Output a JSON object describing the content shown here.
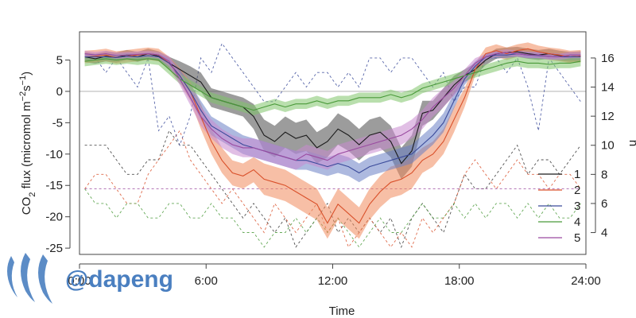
{
  "chart_data": {
    "type": "line",
    "title": "",
    "xlabel": "Time",
    "ylabel": "CO2 flux (micromol m-2 s-1)",
    "y2label": "n",
    "xlim": [
      0,
      24
    ],
    "ylim": [
      -26,
      9.5
    ],
    "y2lim": [
      2.5,
      17.8
    ],
    "x_ticks": [
      0,
      6,
      12,
      18,
      24
    ],
    "x_tick_labels": [
      "0:00",
      "6:00",
      "12:00",
      "18:00",
      "24:00"
    ],
    "y_ticks": [
      -25,
      -20,
      -15,
      -10,
      -5,
      0,
      5
    ],
    "y_tick_labels": [
      "-25",
      "-20",
      "-15",
      "-10",
      "-5",
      "0",
      "5"
    ],
    "y2_ticks": [
      4,
      6,
      8,
      10,
      12,
      14,
      16
    ],
    "y2_tick_labels": [
      "4",
      "6",
      "8",
      "10",
      "12",
      "14",
      "16"
    ],
    "reference_line_y": 0,
    "legend_position": "bottom-right",
    "grid": false,
    "x": [
      0.25,
      0.75,
      1.25,
      1.75,
      2.25,
      2.75,
      3.25,
      3.75,
      4.25,
      4.75,
      5.25,
      5.75,
      6.25,
      6.75,
      7.25,
      7.75,
      8.25,
      8.75,
      9.25,
      9.75,
      10.25,
      10.75,
      11.25,
      11.75,
      12.25,
      12.75,
      13.25,
      13.75,
      14.25,
      14.75,
      15.25,
      15.75,
      16.25,
      16.75,
      17.25,
      17.75,
      18.25,
      18.75,
      19.25,
      19.75,
      20.25,
      20.75,
      21.25,
      21.75,
      22.25,
      22.75,
      23.25,
      23.75
    ],
    "series": [
      {
        "name": "1",
        "color": "#1a1a1a",
        "band_color": "#4a4a4a",
        "mean": [
          5.5,
          5.2,
          5.6,
          5.4,
          5.8,
          5.5,
          6.0,
          5.6,
          4.5,
          3.5,
          2.5,
          1.5,
          -1.0,
          -1.5,
          -2.0,
          -2.5,
          -4.0,
          -7.0,
          -8.0,
          -6.5,
          -7.5,
          -7.0,
          -9.0,
          -8.0,
          -6.0,
          -7.0,
          -8.5,
          -7.0,
          -6.5,
          -8.0,
          -11.5,
          -9.5,
          -3.5,
          -3.0,
          -1.0,
          1.0,
          2.5,
          3.5,
          5.0,
          6.0,
          6.2,
          6.3,
          6.0,
          5.8,
          6.0,
          5.7,
          5.5,
          5.6
        ],
        "half_width": [
          0.8,
          0.8,
          0.8,
          0.8,
          0.8,
          0.8,
          0.8,
          0.8,
          1.0,
          1.3,
          1.5,
          1.5,
          1.5,
          1.5,
          1.5,
          1.5,
          2.0,
          2.5,
          2.5,
          2.5,
          2.5,
          2.5,
          2.5,
          2.5,
          2.5,
          2.5,
          2.5,
          2.5,
          2.5,
          2.5,
          2.5,
          2.5,
          2.0,
          1.5,
          1.5,
          1.5,
          1.0,
          1.0,
          0.8,
          0.8,
          0.8,
          0.8,
          0.8,
          0.8,
          0.8,
          0.8,
          0.8,
          0.8
        ]
      },
      {
        "name": "2",
        "color": "#d9502a",
        "band_color": "#f08a5d",
        "mean": [
          5.5,
          5.6,
          5.8,
          5.4,
          5.6,
          5.8,
          6.0,
          5.8,
          4.5,
          2.5,
          0.0,
          -4.0,
          -8.0,
          -11.0,
          -13.0,
          -13.5,
          -12.5,
          -14.0,
          -14.5,
          -15.0,
          -16.0,
          -17.0,
          -18.0,
          -21.0,
          -18.0,
          -19.5,
          -21.0,
          -18.0,
          -16.0,
          -14.5,
          -14.0,
          -13.0,
          -11.0,
          -10.0,
          -8.0,
          -4.5,
          -1.0,
          3.5,
          6.0,
          6.5,
          6.0,
          6.5,
          6.8,
          6.3,
          6.0,
          5.8,
          5.5,
          5.6
        ],
        "half_width": [
          1.0,
          1.0,
          1.0,
          1.0,
          1.0,
          1.0,
          1.0,
          1.0,
          1.0,
          1.2,
          1.5,
          2.0,
          2.0,
          2.0,
          2.0,
          2.0,
          2.0,
          2.5,
          2.5,
          2.5,
          2.5,
          2.5,
          2.5,
          2.5,
          2.5,
          2.5,
          2.5,
          2.5,
          2.5,
          2.5,
          2.5,
          2.5,
          2.0,
          2.0,
          2.0,
          2.0,
          1.5,
          1.0,
          1.0,
          1.0,
          1.0,
          1.0,
          1.0,
          1.0,
          1.0,
          1.0,
          1.0,
          1.0
        ]
      },
      {
        "name": "3",
        "color": "#3a4a9a",
        "band_color": "#6a7fc4",
        "mean": [
          5.5,
          5.5,
          5.5,
          5.4,
          5.6,
          5.5,
          5.7,
          5.5,
          4.5,
          2.5,
          0.0,
          -3.0,
          -5.5,
          -6.5,
          -7.5,
          -8.5,
          -9.0,
          -9.5,
          -10.0,
          -10.5,
          -11.0,
          -11.0,
          -11.5,
          -12.0,
          -11.5,
          -12.0,
          -13.0,
          -12.0,
          -11.5,
          -11.0,
          -10.5,
          -10.0,
          -8.5,
          -7.0,
          -5.0,
          -1.5,
          2.0,
          4.0,
          5.5,
          5.8,
          5.8,
          6.0,
          5.8,
          5.7,
          5.6,
          5.5,
          5.5,
          5.5
        ],
        "half_width": [
          0.5,
          0.5,
          0.5,
          0.5,
          0.5,
          0.5,
          0.5,
          0.5,
          0.8,
          1.0,
          1.2,
          1.5,
          1.5,
          1.5,
          1.5,
          1.5,
          1.5,
          1.5,
          1.5,
          1.5,
          1.5,
          1.5,
          1.5,
          1.5,
          1.5,
          1.5,
          1.5,
          1.5,
          1.5,
          1.5,
          1.5,
          1.5,
          1.5,
          1.5,
          1.5,
          1.2,
          1.0,
          0.8,
          0.5,
          0.5,
          0.5,
          0.5,
          0.5,
          0.5,
          0.5,
          0.5,
          0.5,
          0.5
        ]
      },
      {
        "name": "4",
        "color": "#4a9a3a",
        "band_color": "#7fc46a",
        "mean": [
          4.8,
          5.0,
          5.2,
          5.0,
          5.2,
          5.0,
          5.2,
          5.0,
          3.5,
          2.0,
          1.0,
          0.0,
          -1.0,
          -1.5,
          -2.0,
          -2.5,
          -3.0,
          -2.5,
          -2.0,
          -2.5,
          -2.0,
          -2.0,
          -1.5,
          -2.0,
          -1.5,
          -1.5,
          -1.0,
          -1.0,
          -1.0,
          -0.5,
          -1.0,
          -0.5,
          0.5,
          1.0,
          1.5,
          2.0,
          2.5,
          3.0,
          3.5,
          4.0,
          4.5,
          4.8,
          4.5,
          4.5,
          4.3,
          4.5,
          4.5,
          4.8
        ],
        "half_width": [
          0.8,
          0.8,
          0.8,
          0.8,
          0.8,
          0.8,
          0.8,
          0.8,
          0.8,
          0.8,
          0.8,
          0.8,
          0.8,
          0.8,
          0.8,
          0.8,
          0.8,
          0.8,
          0.8,
          0.8,
          0.8,
          0.8,
          0.8,
          0.8,
          0.8,
          0.8,
          0.8,
          0.8,
          0.8,
          0.8,
          0.8,
          0.8,
          0.8,
          0.8,
          0.8,
          0.8,
          0.8,
          0.8,
          0.8,
          0.8,
          0.8,
          0.8,
          0.8,
          0.8,
          0.8,
          0.8,
          0.8,
          0.8
        ]
      },
      {
        "name": "5",
        "color": "#9a4aa0",
        "band_color": "#c98ad0",
        "mean": [
          6.0,
          5.8,
          6.0,
          5.7,
          5.8,
          5.9,
          6.0,
          5.8,
          4.8,
          2.0,
          -1.0,
          -4.0,
          -6.0,
          -7.5,
          -8.5,
          -9.0,
          -9.0,
          -9.5,
          -10.0,
          -10.5,
          -11.0,
          -10.0,
          -10.5,
          -11.0,
          -10.0,
          -9.5,
          -9.0,
          -8.5,
          -8.0,
          -7.5,
          -7.0,
          -6.0,
          -4.5,
          -2.5,
          -1.0,
          0.5,
          2.5,
          4.5,
          5.5,
          6.0,
          6.2,
          6.0,
          5.8,
          5.8,
          5.6,
          5.5,
          5.8,
          5.8
        ],
        "half_width": [
          0.5,
          0.5,
          0.5,
          0.5,
          0.5,
          0.5,
          0.5,
          0.5,
          0.8,
          1.0,
          1.2,
          1.5,
          1.5,
          1.5,
          1.5,
          1.5,
          1.5,
          1.5,
          1.5,
          1.5,
          1.5,
          1.5,
          1.5,
          1.5,
          1.5,
          1.5,
          1.5,
          1.5,
          1.5,
          1.5,
          1.5,
          1.5,
          1.5,
          1.5,
          1.5,
          1.2,
          1.0,
          0.8,
          0.5,
          0.5,
          0.5,
          0.5,
          0.5,
          0.5,
          0.5,
          0.5,
          0.5,
          0.5
        ]
      }
    ],
    "n_series": [
      {
        "name": "1",
        "color": "#333333",
        "values": [
          10,
          10,
          10,
          9,
          8,
          8,
          9,
          9,
          11,
          10,
          10,
          9,
          8,
          7,
          6,
          5,
          6,
          5,
          4,
          5,
          3,
          4,
          5,
          6,
          4,
          5,
          4,
          5,
          4,
          5,
          3,
          5,
          6,
          5,
          4,
          6,
          8,
          7,
          7,
          8,
          9,
          10,
          8,
          9,
          9,
          8,
          9,
          10
        ]
      },
      {
        "name": "2",
        "color": "#d9502a",
        "values": [
          7,
          8,
          8,
          7,
          6,
          6,
          8,
          9,
          10,
          11,
          9,
          8,
          7,
          6,
          7,
          6,
          5,
          4,
          6,
          5,
          4,
          5,
          6,
          4,
          5,
          3,
          4,
          5,
          4,
          3,
          4,
          3,
          5,
          4,
          5,
          6,
          8,
          9,
          8,
          7,
          8,
          9,
          8,
          8,
          7,
          8,
          8,
          7
        ]
      },
      {
        "name": "3",
        "color": "#3a4a9a",
        "values": [
          16,
          16,
          15,
          16,
          15,
          14,
          16,
          11,
          12,
          10,
          12,
          16,
          15,
          17,
          16,
          15,
          14,
          13,
          13,
          14,
          15,
          14,
          15,
          15,
          14,
          15,
          14,
          16,
          16,
          15,
          16,
          16,
          15,
          14,
          15,
          13,
          14,
          14,
          16,
          16,
          15,
          16,
          14,
          11,
          16,
          15,
          14,
          13
        ]
      },
      {
        "name": "4",
        "color": "#4a9a3a",
        "values": [
          7,
          6,
          6,
          5,
          6,
          6,
          5,
          5,
          6,
          6,
          5,
          5,
          6,
          5,
          5,
          4,
          4,
          3,
          4,
          4,
          5,
          4,
          5,
          4,
          5,
          4,
          3,
          4,
          5,
          4,
          4,
          5,
          6,
          5,
          5,
          6,
          5,
          6,
          5,
          6,
          6,
          5,
          6,
          5,
          6,
          5,
          5,
          6
        ]
      },
      {
        "name": "5",
        "color": "#9a4aa0",
        "values": [
          7,
          7,
          7,
          7,
          7,
          7,
          7,
          7,
          7,
          7,
          7,
          7,
          7,
          7,
          7,
          7,
          7,
          7,
          7,
          7,
          7,
          7,
          7,
          7,
          7,
          7,
          7,
          7,
          7,
          7,
          7,
          7,
          7,
          7,
          7,
          7,
          7,
          7,
          7,
          7,
          7,
          7,
          7,
          7,
          7,
          7,
          7,
          7
        ]
      }
    ]
  },
  "watermark": {
    "text": "@dapeng",
    "text_color": "#4a7fc0",
    "logo": "steemit-logo-icon"
  }
}
